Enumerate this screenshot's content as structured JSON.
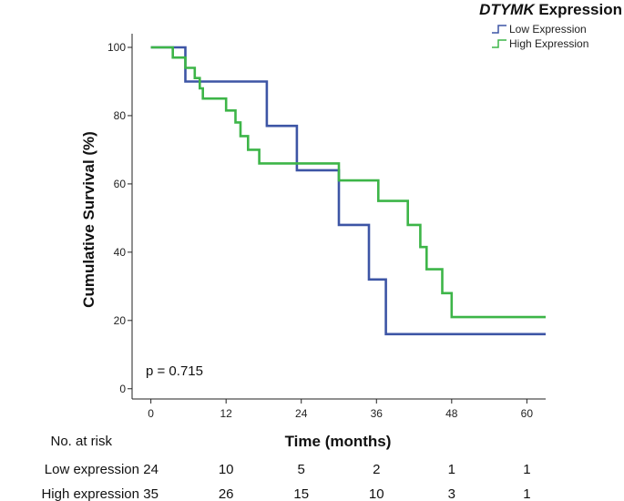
{
  "chart_data": {
    "type": "line",
    "subtype": "kaplan-meier",
    "legend_title_italic": "DTYMK",
    "legend_title_rest": " Expression",
    "legend_placement": "top-right",
    "xlabel": "Time (months)",
    "ylabel": "Cumulative Survival (%)",
    "xlim": [
      -3,
      63
    ],
    "ylim": [
      -3,
      104
    ],
    "x_ticks": [
      "0",
      "12",
      "24",
      "36",
      "48",
      "60"
    ],
    "y_ticks": [
      "0",
      "20",
      "40",
      "60",
      "80",
      "100"
    ],
    "grid": false,
    "annotation": "p = 0.715",
    "series": [
      {
        "name": "Low Expression",
        "color": "#3d55a5",
        "x": [
          0,
          5.5,
          5.5,
          18.5,
          18.5,
          23.3,
          23.3,
          30,
          30,
          34.8,
          34.8,
          37.5,
          37.5,
          63
        ],
        "y": [
          100,
          100,
          90,
          90,
          77,
          77,
          64,
          64,
          48,
          48,
          32,
          32,
          16,
          16
        ]
      },
      {
        "name": "High Expression",
        "color": "#3db548",
        "x": [
          0,
          3.5,
          3.5,
          5.5,
          5.5,
          7,
          7,
          7.8,
          7.8,
          8.3,
          8.3,
          12,
          12,
          13.5,
          13.5,
          14.3,
          14.3,
          15.5,
          15.5,
          17.3,
          17.3,
          18.5,
          18.5,
          30,
          30,
          36.3,
          36.3,
          41,
          41,
          43,
          43,
          44,
          44,
          46.5,
          46.5,
          48,
          48,
          63
        ],
        "y": [
          100,
          100,
          97,
          97,
          94,
          94,
          91,
          91,
          88,
          88,
          85,
          85,
          81.5,
          81.5,
          78,
          78,
          74,
          74,
          70,
          70,
          66,
          66,
          66,
          66,
          61,
          61,
          55,
          55,
          48,
          48,
          41.5,
          41.5,
          35,
          35,
          28,
          28,
          21,
          21
        ]
      }
    ]
  },
  "risk_table": {
    "title": "No. at risk",
    "rows": [
      {
        "label": "Low expression",
        "values": [
          "24",
          "10",
          "5",
          "2",
          "1",
          "1"
        ]
      },
      {
        "label": "High expression",
        "values": [
          "35",
          "26",
          "15",
          "10",
          "3",
          "1"
        ]
      }
    ]
  }
}
